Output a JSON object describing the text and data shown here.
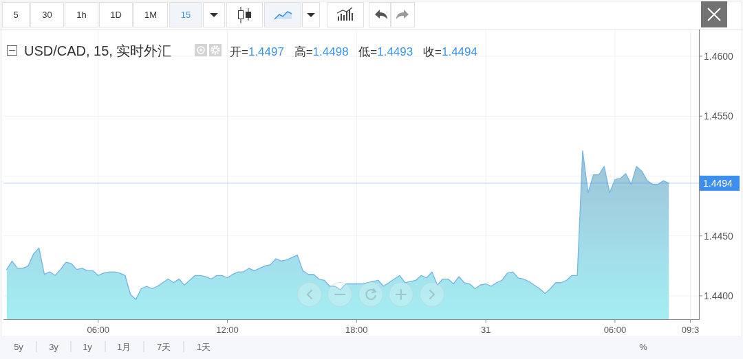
{
  "chart_data": {
    "type": "area",
    "title": "USD/CAD, 15, 实时外汇",
    "subtitle": "开=1.4497 高=1.4498 低=1.4493 收=1.4494",
    "annotations": [
      "5",
      "30",
      "1h",
      "1D",
      "1M",
      "15",
      "5y",
      "3y",
      "1y",
      "1月",
      "7天",
      "1天",
      "%"
    ],
    "x": [
      "--01-30T01:45",
      "--01-30T02:00",
      "--01-30T02:15",
      "--01-30T02:30",
      "--01-30T02:45",
      "--01-30T03:00",
      "--01-30T03:15",
      "--01-30T03:30",
      "--01-30T03:45",
      "--01-30T04:00",
      "--01-30T04:15",
      "--01-30T04:30",
      "--01-30T04:45",
      "--01-30T05:00",
      "--01-30T05:15",
      "--01-30T05:30",
      "--01-30T05:45",
      "--01-30T06:00",
      "--01-30T06:15",
      "--01-30T06:30",
      "--01-30T06:45",
      "--01-30T07:00",
      "--01-30T07:15",
      "--01-30T07:30",
      "--01-30T07:45",
      "--01-30T08:00",
      "--01-30T08:15",
      "--01-30T08:30",
      "--01-30T08:45",
      "--01-30T09:00",
      "--01-30T09:15",
      "--01-30T09:30",
      "--01-30T09:45",
      "--01-30T10:00",
      "--01-30T10:15",
      "--01-30T10:30",
      "--01-30T10:45",
      "--01-30T11:00",
      "--01-30T11:15",
      "--01-30T11:30",
      "--01-30T11:45",
      "--01-30T12:00",
      "--01-30T12:15",
      "--01-30T12:30",
      "--01-30T12:45",
      "--01-30T13:00",
      "--01-30T13:15",
      "--01-30T13:30",
      "--01-30T13:45",
      "--01-30T14:00",
      "--01-30T14:15",
      "--01-30T14:30",
      "--01-30T14:45",
      "--01-30T15:00",
      "--01-30T15:15",
      "--01-30T15:30",
      "--01-30T15:45",
      "--01-30T16:00",
      "--01-30T16:15",
      "--01-30T16:30",
      "--01-30T16:45",
      "--01-30T17:00",
      "--01-30T17:15",
      "--01-30T17:30",
      "--01-30T17:45",
      "--01-30T18:00",
      "--01-30T18:15",
      "--01-30T18:30",
      "--01-30T18:45",
      "--01-30T19:00",
      "--01-30T19:15",
      "--01-30T19:30",
      "--01-30T19:45",
      "--01-30T20:00",
      "--01-30T20:15",
      "--01-30T20:30",
      "--01-30T20:45",
      "--01-30T21:00",
      "--01-30T21:15",
      "--01-30T21:30",
      "--01-30T21:45",
      "--01-30T22:00",
      "--01-30T22:15",
      "--01-30T22:30",
      "--01-30T22:45",
      "--01-30T23:00",
      "--01-30T23:15",
      "--01-30T23:30",
      "--01-30T23:45",
      "--01-31T00:00",
      "--01-31T00:15",
      "--01-31T00:30",
      "--01-31T00:45",
      "--01-31T01:00",
      "--01-31T01:15",
      "--01-31T01:30",
      "--01-31T01:45",
      "--01-31T02:00",
      "--01-31T02:15",
      "--01-31T02:30",
      "--01-31T02:45",
      "--01-31T03:00",
      "--01-31T03:15",
      "--01-31T03:30",
      "--01-31T03:45",
      "--01-31T04:00",
      "--01-31T04:15",
      "--01-31T04:30",
      "--01-31T04:45",
      "--01-31T05:00",
      "--01-31T05:15",
      "--01-31T05:30",
      "--01-31T05:45",
      "--01-31T06:00",
      "--01-31T06:15",
      "--01-31T06:30",
      "--01-31T06:45",
      "--01-31T07:00",
      "--01-31T07:15",
      "--01-31T07:30",
      "--01-31T07:45",
      "--01-31T08:00",
      "--01-31T08:15",
      "--01-31T08:30"
    ],
    "series": [
      {
        "color": "#a4eef3",
        "values": [
          1.4422,
          1.4429,
          1.4423,
          1.4423,
          1.4425,
          1.4435,
          1.444,
          1.4418,
          1.442,
          1.4417,
          1.4422,
          1.4428,
          1.4427,
          1.4422,
          1.4423,
          1.4421,
          1.4421,
          1.4417,
          1.4419,
          1.442,
          1.442,
          1.4419,
          1.4417,
          1.4401,
          1.4397,
          1.4406,
          1.4408,
          1.4406,
          1.4408,
          1.4411,
          1.4414,
          1.4411,
          1.4414,
          1.4409,
          1.4413,
          1.4417,
          1.4417,
          1.4416,
          1.4414,
          1.4417,
          1.4417,
          1.4415,
          1.4418,
          1.442,
          1.442,
          1.4423,
          1.4421,
          1.4423,
          1.4425,
          1.4426,
          1.4431,
          1.4429,
          1.443,
          1.4432,
          1.4434,
          1.4421,
          1.4418,
          1.4418,
          1.4414,
          1.4413,
          1.4408,
          1.4408,
          1.4405,
          1.441,
          1.441,
          1.441,
          1.441,
          1.4411,
          1.4412,
          1.4413,
          1.4408,
          1.4411,
          1.4414,
          1.4417,
          1.4411,
          1.4412,
          1.4413,
          1.4417,
          1.4415,
          1.442,
          1.4409,
          1.4414,
          1.4414,
          1.441,
          1.4416,
          1.4411,
          1.441,
          1.4406,
          1.4409,
          1.441,
          1.4408,
          1.4411,
          1.4413,
          1.4419,
          1.442,
          1.4415,
          1.4414,
          1.4412,
          1.4409,
          1.4406,
          1.4402,
          1.4406,
          1.4411,
          1.4411,
          1.4413,
          1.4417,
          1.4417,
          1.4521,
          1.4486,
          1.4501,
          1.4501,
          1.4508,
          1.4486,
          1.4497,
          1.4498,
          1.4502,
          1.4493,
          1.4508,
          1.4504,
          1.4496,
          1.4493,
          1.4493,
          1.4496,
          1.4494
        ]
      }
    ],
    "xlim": [
      "--01-30T01:36",
      "--01-31T09:54"
    ],
    "xticks": [
      {
        "value": "--01-30T06:00",
        "label": "06:00"
      },
      {
        "value": "--01-30T12:00",
        "label": "12:00"
      },
      {
        "value": "--01-30T18:00",
        "label": "18:00"
      },
      {
        "value": "--01-31T00:00",
        "label": "31"
      },
      {
        "value": "--01-31T06:00",
        "label": "06:00"
      },
      {
        "value": "--01-31T09:30",
        "label": "09:3"
      }
    ],
    "ylim": [
      1.43805,
      1.46217
    ],
    "yticks": [
      {
        "value": 1.44,
        "label": "1.4400"
      },
      {
        "value": 1.445,
        "label": "1.4450"
      },
      {
        "value": 1.45,
        "label": null
      },
      {
        "value": 1.455,
        "label": "1.4550"
      },
      {
        "value": 1.46,
        "label": "1.4600"
      }
    ],
    "grid": true,
    "ref_lines": [
      {
        "axis": "y",
        "value": 1.4494,
        "label": "1.4494",
        "color": "#3d8fef"
      }
    ]
  }
}
